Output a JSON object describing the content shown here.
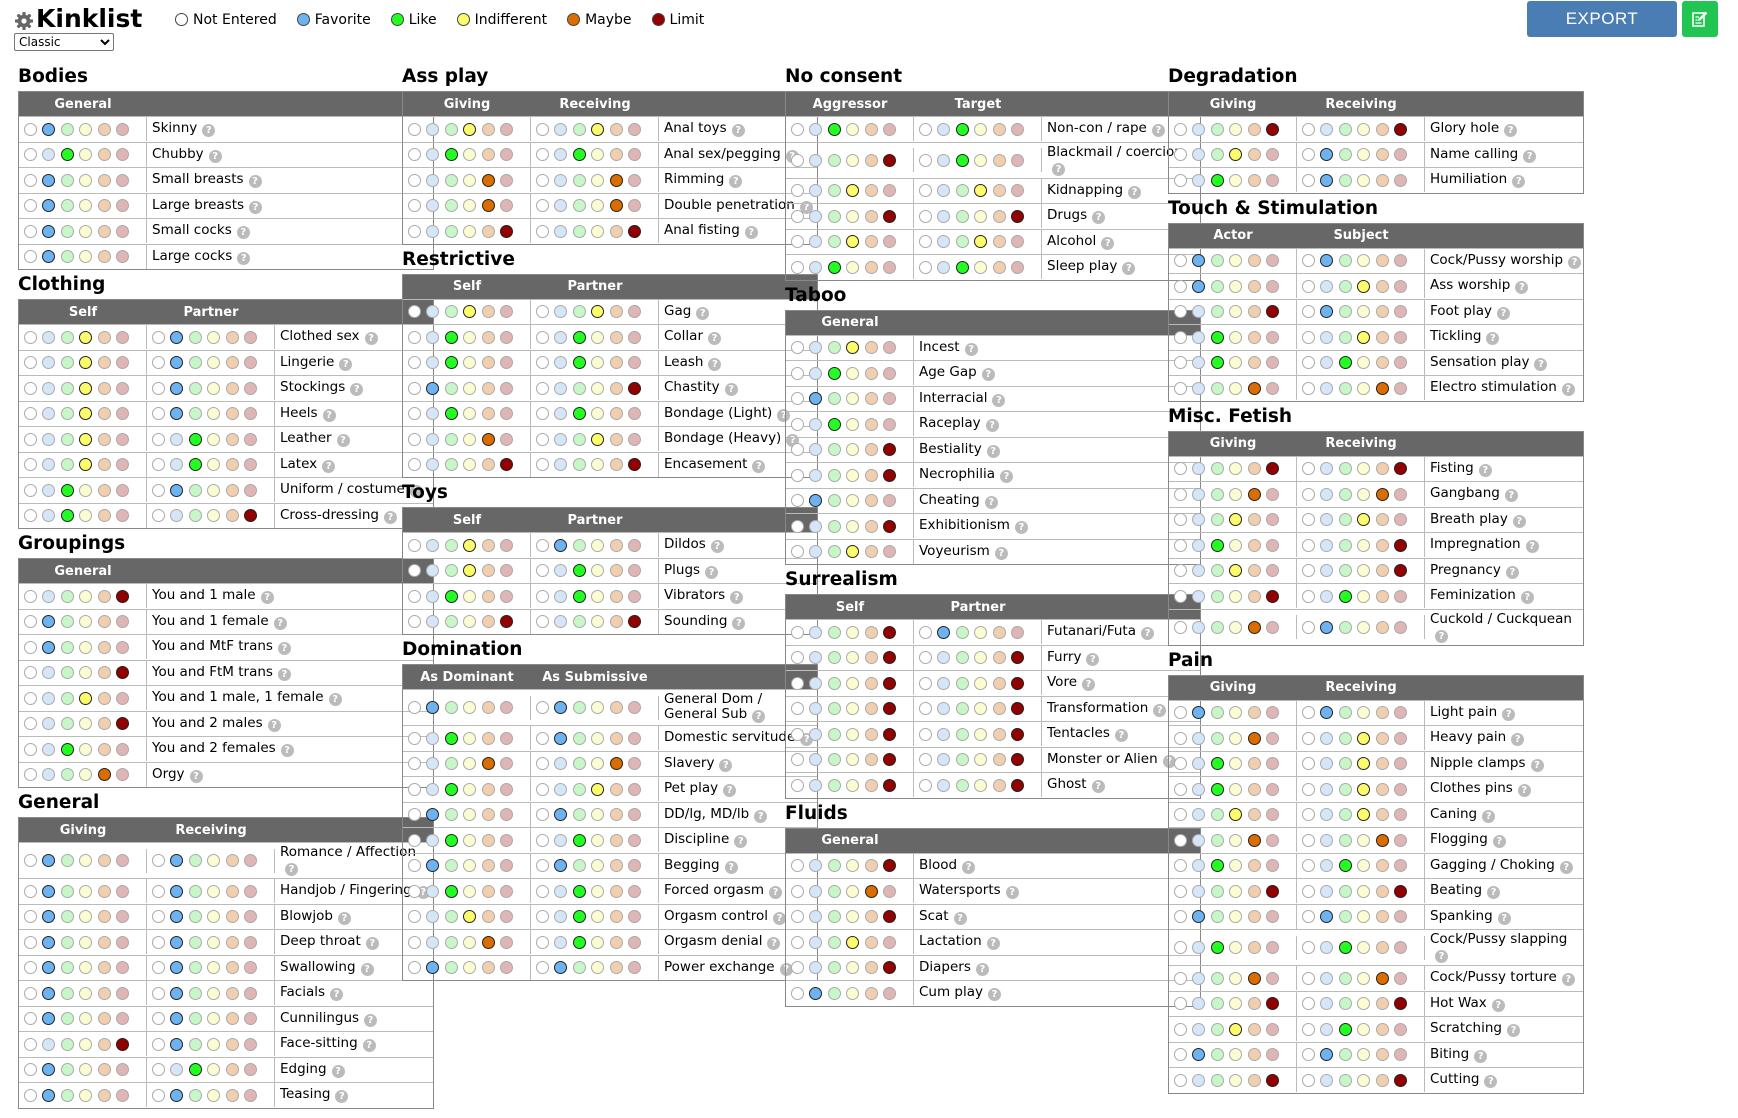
{
  "header": {
    "title": "Kinklist",
    "mode": "Classic",
    "mode_options": [
      "Classic"
    ],
    "export_label": "EXPORT",
    "icons": {
      "settings": "gear-icon",
      "edit": "edit-icon"
    }
  },
  "levels": [
    {
      "id": "not-entered",
      "label": "Not Entered",
      "color": "#ffffff"
    },
    {
      "id": "favorite",
      "label": "Favorite",
      "color": "#6db3f2"
    },
    {
      "id": "like",
      "label": "Like",
      "color": "#23fd22"
    },
    {
      "id": "indifferent",
      "label": "Indifferent",
      "color": "#fdfd6b"
    },
    {
      "id": "maybe",
      "label": "Maybe",
      "color": "#db6c00"
    },
    {
      "id": "limit",
      "label": "Limit",
      "color": "#920000"
    }
  ],
  "categories": [
    {
      "name": "Bodies",
      "columns": [
        "General"
      ],
      "items": [
        [
          "Skinny",
          [
            1
          ]
        ],
        [
          "Chubby",
          [
            2
          ]
        ],
        [
          "Small breasts",
          [
            1
          ]
        ],
        [
          "Large breasts",
          [
            1
          ]
        ],
        [
          "Small cocks",
          [
            1
          ]
        ],
        [
          "Large cocks",
          [
            1
          ]
        ]
      ]
    },
    {
      "name": "Clothing",
      "columns": [
        "Self",
        "Partner"
      ],
      "items": [
        [
          "Clothed sex",
          [
            3,
            1
          ]
        ],
        [
          "Lingerie",
          [
            3,
            1
          ]
        ],
        [
          "Stockings",
          [
            3,
            1
          ]
        ],
        [
          "Heels",
          [
            3,
            1
          ]
        ],
        [
          "Leather",
          [
            3,
            2
          ]
        ],
        [
          "Latex",
          [
            3,
            2
          ]
        ],
        [
          "Uniform / costume",
          [
            2,
            1
          ]
        ],
        [
          "Cross-dressing",
          [
            2,
            5
          ]
        ]
      ]
    },
    {
      "name": "Groupings",
      "columns": [
        "General"
      ],
      "items": [
        [
          "You and 1 male",
          [
            5
          ]
        ],
        [
          "You and 1 female",
          [
            1
          ]
        ],
        [
          "You and MtF trans",
          [
            1
          ]
        ],
        [
          "You and FtM trans",
          [
            5
          ]
        ],
        [
          "You and 1 male, 1 female",
          [
            3
          ]
        ],
        [
          "You and 2 males",
          [
            5
          ]
        ],
        [
          "You and 2 females",
          [
            2
          ]
        ],
        [
          "Orgy",
          [
            4
          ]
        ]
      ]
    },
    {
      "name": "General",
      "columns": [
        "Giving",
        "Receiving"
      ],
      "items": [
        [
          "Romance / Affection",
          [
            1,
            1
          ]
        ],
        [
          "Handjob / Fingering",
          [
            1,
            1
          ]
        ],
        [
          "Blowjob",
          [
            1,
            1
          ]
        ],
        [
          "Deep throat",
          [
            1,
            1
          ]
        ],
        [
          "Swallowing",
          [
            1,
            1
          ]
        ],
        [
          "Facials",
          [
            1,
            1
          ]
        ],
        [
          "Cunnilingus",
          [
            1,
            1
          ]
        ],
        [
          "Face-sitting",
          [
            5,
            1
          ]
        ],
        [
          "Edging",
          [
            1,
            2
          ]
        ],
        [
          "Teasing",
          [
            1,
            1
          ]
        ]
      ]
    },
    {
      "name": "Ass play",
      "columns": [
        "Giving",
        "Receiving"
      ],
      "items": [
        [
          "Anal toys",
          [
            3,
            3
          ]
        ],
        [
          "Anal sex/pegging",
          [
            2,
            2
          ]
        ],
        [
          "Rimming",
          [
            4,
            4
          ]
        ],
        [
          "Double penetration",
          [
            4,
            4
          ]
        ],
        [
          "Anal fisting",
          [
            5,
            5
          ]
        ]
      ]
    },
    {
      "name": "Restrictive",
      "columns": [
        "Self",
        "Partner"
      ],
      "items": [
        [
          "Gag",
          [
            3,
            3
          ]
        ],
        [
          "Collar",
          [
            2,
            2
          ]
        ],
        [
          "Leash",
          [
            2,
            2
          ]
        ],
        [
          "Chastity",
          [
            1,
            5
          ]
        ],
        [
          "Bondage (Light)",
          [
            2,
            2
          ]
        ],
        [
          "Bondage (Heavy)",
          [
            4,
            3
          ]
        ],
        [
          "Encasement",
          [
            5,
            5
          ]
        ]
      ]
    },
    {
      "name": "Toys",
      "columns": [
        "Self",
        "Partner"
      ],
      "items": [
        [
          "Dildos",
          [
            3,
            1
          ]
        ],
        [
          "Plugs",
          [
            3,
            2
          ]
        ],
        [
          "Vibrators",
          [
            2,
            2
          ]
        ],
        [
          "Sounding",
          [
            5,
            5
          ]
        ]
      ]
    },
    {
      "name": "Domination",
      "columns": [
        "As Dominant",
        "As Submissive"
      ],
      "items": [
        [
          "General Dom / General Sub",
          [
            1,
            1
          ]
        ],
        [
          "Domestic servitude",
          [
            2,
            1
          ]
        ],
        [
          "Slavery",
          [
            4,
            4
          ]
        ],
        [
          "Pet play",
          [
            2,
            3
          ]
        ],
        [
          "DD/lg, MD/lb",
          [
            1,
            1
          ]
        ],
        [
          "Discipline",
          [
            2,
            2
          ]
        ],
        [
          "Begging",
          [
            1,
            1
          ]
        ],
        [
          "Forced orgasm",
          [
            2,
            2
          ]
        ],
        [
          "Orgasm control",
          [
            3,
            2
          ]
        ],
        [
          "Orgasm denial",
          [
            4,
            2
          ]
        ],
        [
          "Power exchange",
          [
            1,
            1
          ]
        ]
      ]
    },
    {
      "name": "No consent",
      "columns": [
        "Aggressor",
        "Target"
      ],
      "items": [
        [
          "Non-con / rape",
          [
            2,
            2
          ]
        ],
        [
          "Blackmail / coercion",
          [
            5,
            2
          ]
        ],
        [
          "Kidnapping",
          [
            3,
            3
          ]
        ],
        [
          "Drugs",
          [
            5,
            5
          ]
        ],
        [
          "Alcohol",
          [
            3,
            3
          ]
        ],
        [
          "Sleep play",
          [
            2,
            2
          ]
        ]
      ]
    },
    {
      "name": "Taboo",
      "columns": [
        "General"
      ],
      "items": [
        [
          "Incest",
          [
            3
          ]
        ],
        [
          "Age Gap",
          [
            2
          ]
        ],
        [
          "Interracial",
          [
            1
          ]
        ],
        [
          "Raceplay",
          [
            2
          ]
        ],
        [
          "Bestiality",
          [
            5
          ]
        ],
        [
          "Necrophilia",
          [
            5
          ]
        ],
        [
          "Cheating",
          [
            1
          ]
        ],
        [
          "Exhibitionism",
          [
            5
          ]
        ],
        [
          "Voyeurism",
          [
            3
          ]
        ]
      ]
    },
    {
      "name": "Surrealism",
      "columns": [
        "Self",
        "Partner"
      ],
      "items": [
        [
          "Futanari/Futa",
          [
            5,
            1
          ]
        ],
        [
          "Furry",
          [
            5,
            5
          ]
        ],
        [
          "Vore",
          [
            5,
            5
          ]
        ],
        [
          "Transformation",
          [
            5,
            5
          ]
        ],
        [
          "Tentacles",
          [
            5,
            5
          ]
        ],
        [
          "Monster or Alien",
          [
            5,
            5
          ]
        ],
        [
          "Ghost",
          [
            5,
            5
          ]
        ]
      ]
    },
    {
      "name": "Fluids",
      "columns": [
        "General"
      ],
      "items": [
        [
          "Blood",
          [
            5
          ]
        ],
        [
          "Watersports",
          [
            4
          ]
        ],
        [
          "Scat",
          [
            5
          ]
        ],
        [
          "Lactation",
          [
            3
          ]
        ],
        [
          "Diapers",
          [
            5
          ]
        ],
        [
          "Cum play",
          [
            1
          ]
        ]
      ]
    },
    {
      "name": "Degradation",
      "columns": [
        "Giving",
        "Receiving"
      ],
      "items": [
        [
          "Glory hole",
          [
            5,
            5
          ]
        ],
        [
          "Name calling",
          [
            3,
            1
          ]
        ],
        [
          "Humiliation",
          [
            2,
            1
          ]
        ]
      ]
    },
    {
      "name": "Touch & Stimulation",
      "columns": [
        "Actor",
        "Subject"
      ],
      "items": [
        [
          "Cock/Pussy worship",
          [
            1,
            1
          ]
        ],
        [
          "Ass worship",
          [
            1,
            3
          ]
        ],
        [
          "Foot play",
          [
            5,
            1
          ]
        ],
        [
          "Tickling",
          [
            2,
            3
          ]
        ],
        [
          "Sensation play",
          [
            2,
            2
          ]
        ],
        [
          "Electro stimulation",
          [
            4,
            4
          ]
        ]
      ]
    },
    {
      "name": "Misc. Fetish",
      "columns": [
        "Giving",
        "Receiving"
      ],
      "items": [
        [
          "Fisting",
          [
            5,
            5
          ]
        ],
        [
          "Gangbang",
          [
            4,
            4
          ]
        ],
        [
          "Breath play",
          [
            3,
            3
          ]
        ],
        [
          "Impregnation",
          [
            2,
            5
          ]
        ],
        [
          "Pregnancy",
          [
            3,
            5
          ]
        ],
        [
          "Feminization",
          [
            5,
            2
          ]
        ],
        [
          "Cuckold / Cuckquean",
          [
            4,
            1
          ]
        ]
      ]
    },
    {
      "name": "Pain",
      "columns": [
        "Giving",
        "Receiving"
      ],
      "items": [
        [
          "Light pain",
          [
            1,
            1
          ]
        ],
        [
          "Heavy pain",
          [
            4,
            3
          ]
        ],
        [
          "Nipple clamps",
          [
            2,
            3
          ]
        ],
        [
          "Clothes pins",
          [
            2,
            3
          ]
        ],
        [
          "Caning",
          [
            3,
            3
          ]
        ],
        [
          "Flogging",
          [
            4,
            4
          ]
        ],
        [
          "Gagging / Choking",
          [
            2,
            2
          ]
        ],
        [
          "Beating",
          [
            5,
            5
          ]
        ],
        [
          "Spanking",
          [
            1,
            1
          ]
        ],
        [
          "Cock/Pussy slapping",
          [
            2,
            2
          ]
        ],
        [
          "Cock/Pussy torture",
          [
            4,
            4
          ]
        ],
        [
          "Hot Wax",
          [
            5,
            5
          ]
        ],
        [
          "Scratching",
          [
            3,
            2
          ]
        ],
        [
          "Biting",
          [
            1,
            1
          ]
        ],
        [
          "Cutting",
          [
            5,
            5
          ]
        ]
      ]
    }
  ]
}
